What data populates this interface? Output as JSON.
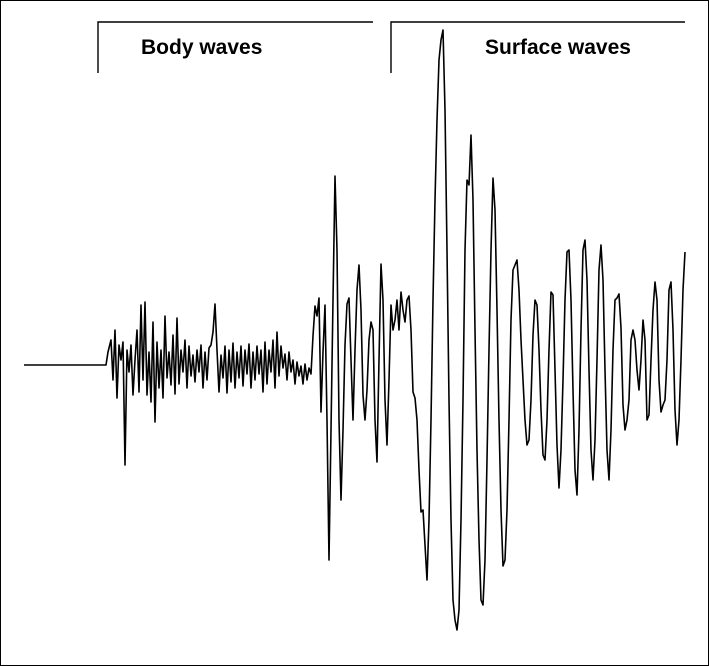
{
  "labels": {
    "body_waves": "Body waves",
    "surface_waves": "Surface waves"
  },
  "colors": {
    "line": "#000000",
    "background": "#ffffff"
  }
}
